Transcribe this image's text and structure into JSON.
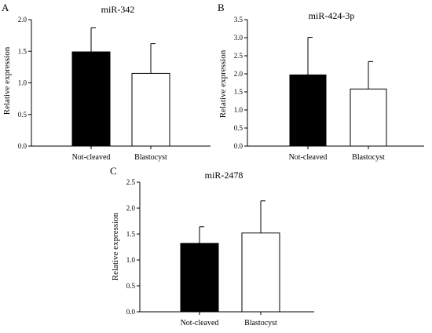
{
  "chart_data": [
    {
      "type": "bar",
      "panel_label": "A",
      "title": "miR-342",
      "ylabel": "Relative expression",
      "xlabel": "",
      "categories": [
        "Not-cleaved",
        "Blastocyst"
      ],
      "values": [
        1.49,
        1.15
      ],
      "errors": [
        0.38,
        0.47
      ],
      "ylim": [
        0,
        2.0
      ],
      "yticks": [
        "0.0",
        "0.5",
        "1.0",
        "1.5",
        "2.0"
      ],
      "bar_colors": [
        "#000000",
        "#ffffff"
      ],
      "grid": false
    },
    {
      "type": "bar",
      "panel_label": "B",
      "title": "miR-424-3p",
      "ylabel": "Relative expression",
      "xlabel": "",
      "categories": [
        "Not-cleaved",
        "Blastocyst"
      ],
      "values": [
        1.97,
        1.58
      ],
      "errors": [
        1.04,
        0.76
      ],
      "ylim": [
        0,
        3.5
      ],
      "yticks": [
        "0.0",
        "0.5",
        "1.0",
        "1.5",
        "2.0",
        "2.5",
        "3.0",
        "3.5"
      ],
      "bar_colors": [
        "#000000",
        "#ffffff"
      ],
      "grid": false
    },
    {
      "type": "bar",
      "panel_label": "C",
      "title": "miR-2478",
      "ylabel": "Relative expression",
      "xlabel": "",
      "categories": [
        "Not-cleaved",
        "Blastocyst"
      ],
      "values": [
        1.32,
        1.52
      ],
      "errors": [
        0.32,
        0.62
      ],
      "ylim": [
        0,
        2.5
      ],
      "yticks": [
        "0.0",
        "0.5",
        "1.0",
        "1.5",
        "2.0",
        "2.5"
      ],
      "bar_colors": [
        "#000000",
        "#ffffff"
      ],
      "grid": false
    }
  ]
}
